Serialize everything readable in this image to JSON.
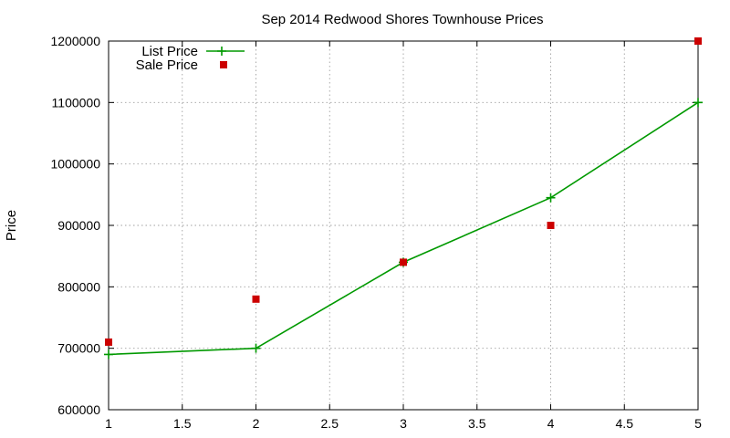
{
  "chart_data": {
    "type": "line",
    "title": "Sep 2014 Redwood Shores Townhouse Prices",
    "xlabel": "",
    "ylabel": "Price",
    "xlim": [
      1,
      5
    ],
    "ylim": [
      600000,
      1200000
    ],
    "x_ticks": [
      "1",
      "1.5",
      "2",
      "2.5",
      "3",
      "3.5",
      "4",
      "4.5",
      "5"
    ],
    "y_ticks": [
      "600000",
      "700000",
      "800000",
      "900000",
      "1000000",
      "1100000",
      "1200000"
    ],
    "grid": true,
    "legend_position": "top-left",
    "x": [
      1,
      2,
      3,
      4,
      5
    ],
    "series": [
      {
        "name": "List Price",
        "style": "line-with-plus-markers",
        "color": "#009900",
        "values": [
          690000,
          700000,
          840000,
          945000,
          1100000
        ]
      },
      {
        "name": "Sale Price",
        "style": "square-markers",
        "color": "#cc0000",
        "values": [
          710000,
          780000,
          840000,
          900000,
          1200000
        ]
      }
    ]
  }
}
